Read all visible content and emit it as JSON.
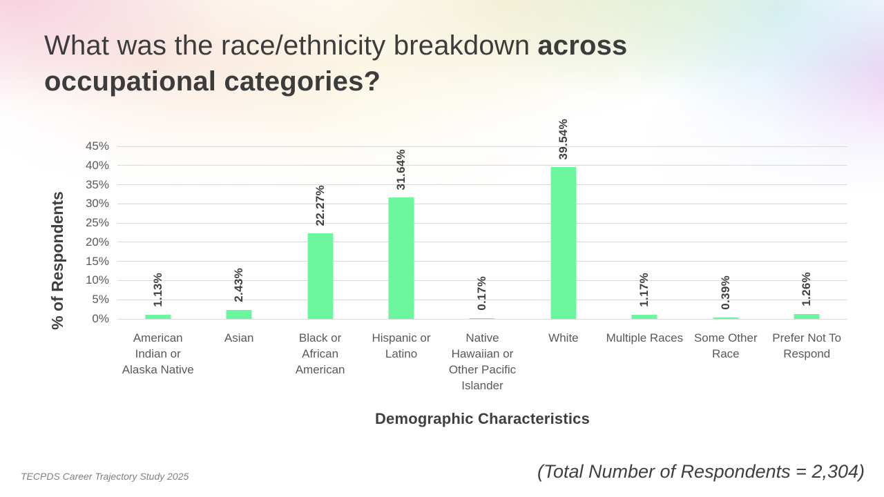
{
  "slide": {
    "title": {
      "regular": "What was the race/ethnicity breakdown",
      "bold_inline": "across",
      "line2": "occupational categories?"
    },
    "footer_left": "TECPDS Career Trajectory Study 2025",
    "footer_right": "(Total Number of Respondents = 2,304)"
  },
  "chart_data": {
    "type": "bar",
    "title": "",
    "xlabel": "Demographic Characteristics",
    "ylabel": "% of Respondents",
    "categories": [
      "American Indian or Alaska Native",
      "Asian",
      "Black or African American",
      "Hispanic or Latino",
      "Native Hawaiian or Other Pacific Islander",
      "White",
      "Multiple Races",
      "Some Other Race",
      "Prefer Not To Respond"
    ],
    "values": [
      1.13,
      2.43,
      22.27,
      31.64,
      0.17,
      39.54,
      1.17,
      0.39,
      1.26
    ],
    "data_labels": [
      "1.13%",
      "2.43%",
      "22.27%",
      "31.64%",
      "0.17%",
      "39.54%",
      "1.17%",
      "0.39%",
      "1.26%"
    ],
    "ylim": [
      0,
      45
    ],
    "ytick_step": 5,
    "ytick_labels": [
      "0%",
      "5%",
      "10%",
      "15%",
      "20%",
      "25%",
      "30%",
      "35%",
      "40%",
      "45%"
    ],
    "grid": true,
    "legend": false,
    "data_label_rotation": "vertical-bottom-to-top",
    "bar_color": "#6cf69d",
    "gridline_color": "#d9d9d9"
  }
}
